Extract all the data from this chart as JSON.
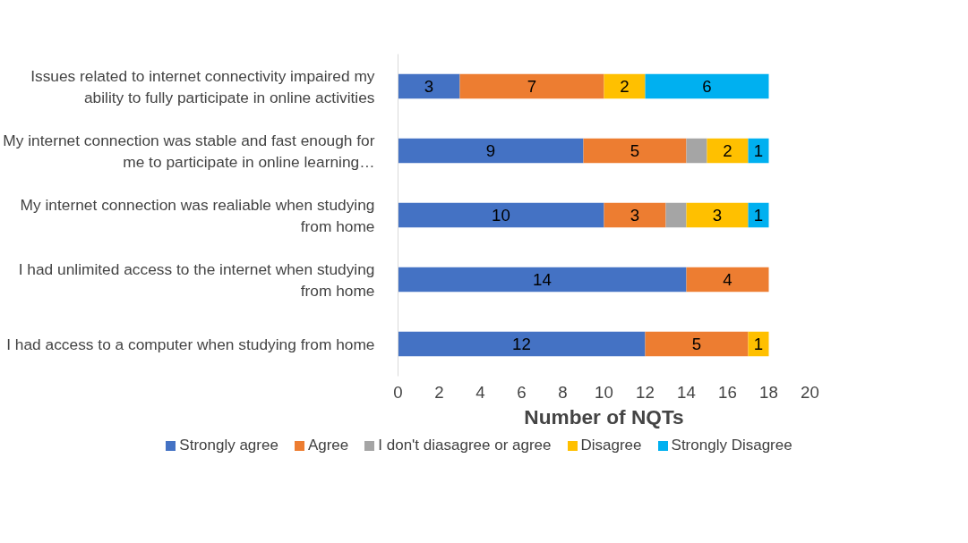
{
  "chart_data": {
    "type": "bar",
    "orientation": "horizontal",
    "stacked": true,
    "xlabel": "Number of NQTs",
    "categories": [
      "Issues related to internet connectivity impaired my ability to fully participate in online activities",
      "My internet connection was stable and fast enough for me to participate in online learning…",
      "My internet connection was realiable when studying from home",
      "I had unlimited access to the internet when studying from home",
      "I had access to a computer when studying from home"
    ],
    "series": [
      {
        "name": "Strongly agree",
        "color": "#4472c4",
        "values": [
          3,
          9,
          10,
          14,
          12
        ],
        "value_labels": [
          "3",
          "9",
          "10",
          "14",
          "12"
        ]
      },
      {
        "name": "Agree",
        "color": "#ed7d31",
        "values": [
          7,
          5,
          3,
          4,
          5
        ],
        "value_labels": [
          "7",
          "5",
          "3",
          "4",
          "5"
        ]
      },
      {
        "name": "I don't diasagree or agree",
        "color": "#a5a5a5",
        "values": [
          null,
          1,
          1,
          null,
          null
        ],
        "value_labels": [
          null,
          null,
          null,
          null,
          null
        ]
      },
      {
        "name": "Disagree",
        "color": "#ffc000",
        "values": [
          2,
          2,
          3,
          null,
          1
        ],
        "value_labels": [
          "2",
          "2",
          "3",
          null,
          "1"
        ]
      },
      {
        "name": "Strongly Disagree",
        "color": "#00b0f0",
        "values": [
          6,
          1,
          1,
          null,
          null
        ],
        "value_labels": [
          "6",
          "1",
          "1",
          null,
          null
        ]
      }
    ],
    "xlim": [
      0,
      20
    ],
    "xticks": [
      0,
      2,
      4,
      6,
      8,
      10,
      12,
      14,
      16,
      18,
      20
    ],
    "grid": false,
    "legend": "bottom"
  }
}
